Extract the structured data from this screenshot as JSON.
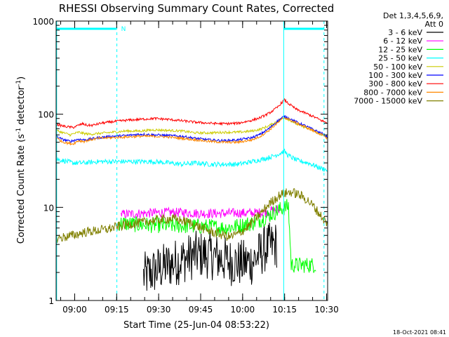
{
  "chart_data": {
    "type": "line",
    "title": "RHESSI Observing Summary Count Rates, Corrected",
    "ylabel": "Corrected Count Rate (s-1 detector-1)",
    "ylabel_parts": {
      "a": "Corrected Count Rate (s",
      "b": "-1",
      "c": " detector",
      "d": "-1",
      "e": ")"
    },
    "xlabel": "Start Time (25-Jun-04 08:53:22)",
    "yscale": "log",
    "ylim": [
      1,
      1000
    ],
    "xlim_minutes": [
      0,
      97
    ],
    "y_ticks": [
      {
        "value": 1,
        "label": "1"
      },
      {
        "value": 10,
        "label": "10"
      },
      {
        "value": 100,
        "label": "100"
      },
      {
        "value": 1000,
        "label": "1000"
      }
    ],
    "x_ticks": [
      {
        "minute": 6.63,
        "label": "09:00"
      },
      {
        "minute": 21.63,
        "label": "09:15"
      },
      {
        "minute": 36.63,
        "label": "09:30"
      },
      {
        "minute": 51.63,
        "label": "09:45"
      },
      {
        "minute": 66.63,
        "label": "10:00"
      },
      {
        "minute": 81.63,
        "label": "10:15"
      },
      {
        "minute": 96.63,
        "label": "10:30"
      }
    ],
    "legend": {
      "header1": "Det 1,3,4,5,6,9,",
      "header2": "Att 0",
      "placement": "right"
    },
    "series": [
      {
        "name": "3 - 6 keV",
        "color": "#000000",
        "noise": 0.6,
        "points": [
          [
            0,
            null
          ],
          [
            1,
            null
          ],
          [
            30,
            null
          ],
          [
            31,
            1.8
          ],
          [
            37,
            2.2
          ],
          [
            40,
            2.4
          ],
          [
            43,
            2.6
          ],
          [
            46,
            2.8
          ],
          [
            50,
            3.1
          ],
          [
            54,
            3.1
          ],
          [
            59,
            2.8
          ],
          [
            62,
            2.6
          ],
          [
            66,
            2.5
          ],
          [
            70,
            2.6
          ],
          [
            73,
            3.2
          ],
          [
            75,
            3.7
          ],
          [
            77.5,
            3.9
          ],
          [
            79,
            4.0
          ],
          [
            80,
            null
          ],
          [
            97,
            null
          ]
        ]
      },
      {
        "name": "6 - 12 keV",
        "color": "#ff00ff",
        "noise": 0.12,
        "points": [
          [
            0,
            null
          ],
          [
            22,
            null
          ],
          [
            23,
            8.4
          ],
          [
            30,
            8.6
          ],
          [
            38,
            8.8
          ],
          [
            45,
            8.8
          ],
          [
            52,
            8.6
          ],
          [
            59,
            8.6
          ],
          [
            64,
            8.7
          ],
          [
            70,
            8.7
          ],
          [
            74,
            8.8
          ],
          [
            78.5,
            9.4
          ],
          [
            80,
            9.4
          ],
          [
            81,
            null
          ],
          [
            97,
            null
          ]
        ]
      },
      {
        "name": "12 - 25 keV",
        "color": "#00ff00",
        "noise": 0.2,
        "points": [
          [
            0,
            null
          ],
          [
            21,
            null
          ],
          [
            22,
            6.8
          ],
          [
            30,
            6.5
          ],
          [
            40,
            6.4
          ],
          [
            48,
            6.3
          ],
          [
            55,
            6.2
          ],
          [
            60,
            6.0
          ],
          [
            65,
            6.3
          ],
          [
            70,
            6.8
          ],
          [
            74,
            7.6
          ],
          [
            77,
            8.5
          ],
          [
            80,
            9.5
          ],
          [
            83,
            10.3
          ],
          [
            84,
            2.4
          ],
          [
            90,
            2.4
          ],
          [
            93,
            2.4
          ],
          [
            94,
            null
          ],
          [
            97,
            null
          ]
        ]
      },
      {
        "name": "25 - 50 keV",
        "color": "#00ffff",
        "noise": 0.06,
        "points": [
          [
            0,
            33
          ],
          [
            2,
            32
          ],
          [
            6,
            30
          ],
          [
            10,
            30
          ],
          [
            15,
            31
          ],
          [
            20,
            31
          ],
          [
            25,
            31
          ],
          [
            30,
            31
          ],
          [
            35,
            31
          ],
          [
            40,
            30
          ],
          [
            45,
            29
          ],
          [
            50,
            30
          ],
          [
            55,
            29
          ],
          [
            60,
            29
          ],
          [
            65,
            29
          ],
          [
            70,
            31
          ],
          [
            74,
            33
          ],
          [
            77,
            35
          ],
          [
            80,
            38
          ],
          [
            81.5,
            40
          ],
          [
            83,
            36
          ],
          [
            86,
            32
          ],
          [
            90,
            30
          ],
          [
            95,
            26
          ],
          [
            97,
            25
          ]
        ]
      },
      {
        "name": "50 - 100 keV",
        "color": "#cccc00",
        "noise": 0.03,
        "points": [
          [
            0,
            67
          ],
          [
            2,
            64
          ],
          [
            5,
            60
          ],
          [
            8,
            64
          ],
          [
            10,
            62
          ],
          [
            12,
            61
          ],
          [
            15,
            62
          ],
          [
            20,
            64
          ],
          [
            25,
            66
          ],
          [
            30,
            66
          ],
          [
            35,
            68
          ],
          [
            40,
            67
          ],
          [
            45,
            66
          ],
          [
            50,
            63
          ],
          [
            55,
            63
          ],
          [
            60,
            64
          ],
          [
            65,
            64
          ],
          [
            70,
            66
          ],
          [
            73,
            69
          ],
          [
            76,
            75
          ],
          [
            79,
            84
          ],
          [
            81.5,
            92
          ],
          [
            83,
            88
          ],
          [
            86,
            78
          ],
          [
            89,
            72
          ],
          [
            92,
            66
          ],
          [
            95,
            60
          ],
          [
            97,
            56
          ]
        ]
      },
      {
        "name": "100 - 300 keV",
        "color": "#0000ff",
        "noise": 0.03,
        "points": [
          [
            0,
            58
          ],
          [
            2,
            54
          ],
          [
            5,
            51
          ],
          [
            8,
            54
          ],
          [
            10,
            53
          ],
          [
            12,
            54
          ],
          [
            15,
            56
          ],
          [
            20,
            58
          ],
          [
            25,
            59
          ],
          [
            30,
            61
          ],
          [
            35,
            60
          ],
          [
            40,
            59
          ],
          [
            45,
            58
          ],
          [
            50,
            55
          ],
          [
            55,
            53
          ],
          [
            60,
            52
          ],
          [
            65,
            53
          ],
          [
            70,
            56
          ],
          [
            73,
            61
          ],
          [
            76,
            70
          ],
          [
            79,
            84
          ],
          [
            81.5,
            95
          ],
          [
            83,
            91
          ],
          [
            86,
            82
          ],
          [
            89,
            75
          ],
          [
            92,
            68
          ],
          [
            95,
            62
          ],
          [
            97,
            57
          ]
        ]
      },
      {
        "name": "300 - 800 keV",
        "color": "#ff0000",
        "noise": 0.03,
        "points": [
          [
            0,
            78
          ],
          [
            3,
            74
          ],
          [
            6,
            72
          ],
          [
            8,
            76
          ],
          [
            9.5,
            79
          ],
          [
            11,
            76
          ],
          [
            13,
            76
          ],
          [
            16,
            80
          ],
          [
            20,
            83
          ],
          [
            25,
            86
          ],
          [
            30,
            88
          ],
          [
            35,
            90
          ],
          [
            40,
            88
          ],
          [
            45,
            85
          ],
          [
            50,
            82
          ],
          [
            55,
            80
          ],
          [
            60,
            79
          ],
          [
            65,
            80
          ],
          [
            70,
            86
          ],
          [
            73,
            92
          ],
          [
            76,
            102
          ],
          [
            79,
            118
          ],
          [
            81.5,
            143
          ],
          [
            83,
            130
          ],
          [
            86,
            112
          ],
          [
            89,
            103
          ],
          [
            92,
            94
          ],
          [
            95,
            85
          ],
          [
            97,
            80
          ]
        ]
      },
      {
        "name": "800 - 7000 keV",
        "color": "#ff8800",
        "noise": 0.03,
        "points": [
          [
            0,
            56
          ],
          [
            2,
            51
          ],
          [
            4,
            49
          ],
          [
            6,
            48
          ],
          [
            8,
            52
          ],
          [
            10,
            51
          ],
          [
            12,
            53
          ],
          [
            15,
            55
          ],
          [
            20,
            56
          ],
          [
            25,
            57
          ],
          [
            30,
            58
          ],
          [
            35,
            58
          ],
          [
            40,
            57
          ],
          [
            45,
            55
          ],
          [
            50,
            53
          ],
          [
            55,
            51
          ],
          [
            60,
            50
          ],
          [
            65,
            50
          ],
          [
            70,
            53
          ],
          [
            73,
            58
          ],
          [
            76,
            67
          ],
          [
            79,
            80
          ],
          [
            81.5,
            92
          ],
          [
            83,
            89
          ],
          [
            86,
            80
          ],
          [
            89,
            73
          ],
          [
            92,
            66
          ],
          [
            95,
            60
          ],
          [
            97,
            55
          ]
        ]
      },
      {
        "name": "7000 - 15000 keV",
        "color": "#808000",
        "noise": 0.12,
        "points": [
          [
            0,
            4.6
          ],
          [
            3,
            4.8
          ],
          [
            6,
            5.0
          ],
          [
            10,
            5.4
          ],
          [
            14,
            5.6
          ],
          [
            18,
            5.8
          ],
          [
            22,
            6.2
          ],
          [
            26,
            6.6
          ],
          [
            30,
            6.8
          ],
          [
            34,
            7.2
          ],
          [
            38,
            7.4
          ],
          [
            41,
            7.6
          ],
          [
            45,
            7.2
          ],
          [
            48,
            6.8
          ],
          [
            52,
            6.0
          ],
          [
            56,
            5.4
          ],
          [
            60,
            5.0
          ],
          [
            62,
            4.8
          ],
          [
            65,
            5.2
          ],
          [
            68,
            6.0
          ],
          [
            71,
            7.4
          ],
          [
            74,
            9.2
          ],
          [
            76,
            10.8
          ],
          [
            78,
            12.2
          ],
          [
            80,
            13.6
          ],
          [
            82,
            14.2
          ],
          [
            84,
            14.6
          ],
          [
            86,
            14.0
          ],
          [
            88,
            13.0
          ],
          [
            90,
            11.8
          ],
          [
            92,
            10.2
          ],
          [
            94,
            8.6
          ],
          [
            96,
            7.2
          ],
          [
            97,
            6.5
          ]
        ]
      }
    ],
    "annotations": {
      "night_segments_minutes": [
        [
          0,
          21.5
        ],
        [
          81.3,
          95.7
        ]
      ],
      "event_lines_minutes": [
        0.2,
        21.7,
        81.3,
        95.7
      ],
      "attenuator_label": "N",
      "attenuator_label_minute": 22.2
    },
    "timestamp": "18-Oct-2021 08:41"
  }
}
